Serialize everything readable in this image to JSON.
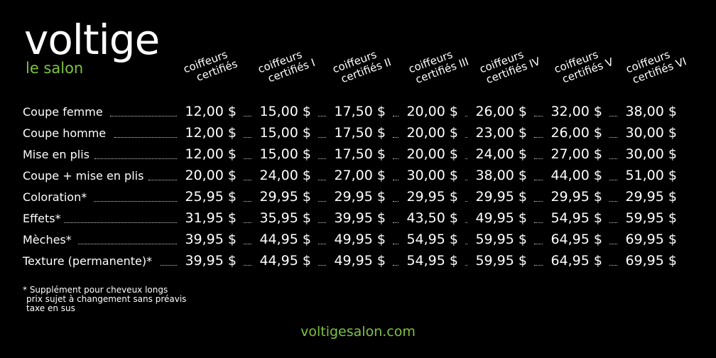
{
  "brand": {
    "name": "voltige",
    "tagline": "le salon"
  },
  "columns": [
    {
      "line1": "coiffeurs",
      "line2": "certifiés"
    },
    {
      "line1": "coiffeurs",
      "line2": "certifiés I"
    },
    {
      "line1": "coiffeurs",
      "line2": "certifiés II"
    },
    {
      "line1": "coiffeurs",
      "line2": "certifiés III"
    },
    {
      "line1": "coiffeurs",
      "line2": "certifiés IV"
    },
    {
      "line1": "coiffeurs",
      "line2": "certifiés V"
    },
    {
      "line1": "coiffeurs",
      "line2": "certifiés VI"
    }
  ],
  "rows": [
    {
      "service": "Coupe femme",
      "prices": [
        "12,00 $",
        "15,00 $",
        "17,50 $",
        "20,00 $",
        "26,00 $",
        "32,00 $",
        "38,00 $"
      ]
    },
    {
      "service": "Coupe homme",
      "prices": [
        "12,00 $",
        "15,00 $",
        "17,50 $",
        "20,00 $",
        "23,00 $",
        "26,00 $",
        "30,00 $"
      ]
    },
    {
      "service": "Mise en plis",
      "prices": [
        "12,00 $",
        "15,00 $",
        "17,50 $",
        "20,00 $",
        "24,00 $",
        "27,00 $",
        "30,00 $"
      ]
    },
    {
      "service": "Coupe + mise en plis",
      "prices": [
        "20,00 $",
        "24,00 $",
        "27,00 $",
        "30,00 $",
        "38,00 $",
        "44,00 $",
        "51,00 $"
      ]
    },
    {
      "service": "Coloration*",
      "prices": [
        "25,95 $",
        "29,95 $",
        "29,95 $",
        "29,95 $",
        "29,95 $",
        "29,95 $",
        "29,95 $"
      ]
    },
    {
      "service": "Effets*",
      "prices": [
        "31,95 $",
        "35,95 $",
        "39,95 $",
        "43,50 $",
        "49,95 $",
        "54,95 $",
        "59,95 $"
      ]
    },
    {
      "service": "Mèches*",
      "prices": [
        "39,95 $",
        "44,95 $",
        "49,95 $",
        "54,95 $",
        "59,95 $",
        "64,95 $",
        "69,95 $"
      ]
    },
    {
      "service": "Texture (permanente)*",
      "prices": [
        "39,95 $",
        "44,95 $",
        "49,95 $",
        "54,95 $",
        "59,95 $",
        "64,95 $",
        "69,95 $"
      ]
    }
  ],
  "notes": {
    "line1": "* Supplément pour cheveux longs",
    "line2": "prix sujet à changement sans préavis",
    "line3": "taxe en sus"
  },
  "website": "voltigesalon.com",
  "colors": {
    "background": "#000000",
    "text": "#ffffff",
    "accent": "#7dc242"
  }
}
